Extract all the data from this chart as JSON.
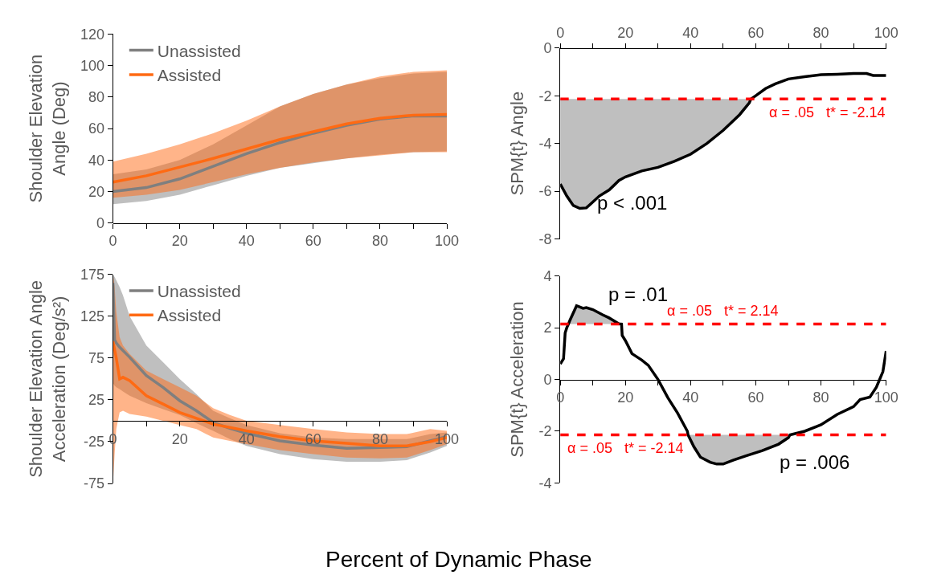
{
  "chart_data": [
    {
      "type": "line",
      "ylabel": "Shoulder Elevation\nAngle (Deg)",
      "xlim": [
        0,
        100
      ],
      "xticks": [
        0,
        {
          "value": 10,
          "label": null
        },
        20,
        {
          "value": 30,
          "label": null
        },
        40,
        {
          "value": 50,
          "label": null
        },
        60,
        {
          "value": 70,
          "label": null
        },
        80,
        {
          "value": 90,
          "label": null
        },
        100
      ],
      "ylim": [
        0,
        120
      ],
      "yticks": [
        0,
        20,
        40,
        60,
        80,
        100,
        120
      ],
      "legend": "top left",
      "series": [
        {
          "name": "Unassisted",
          "color": "#7f7f7f",
          "x": [
            0,
            10,
            20,
            30,
            40,
            50,
            60,
            70,
            80,
            90,
            100
          ],
          "values": [
            20,
            22.5,
            28,
            36,
            44,
            51,
            57,
            62,
            66,
            68,
            68
          ],
          "lower": [
            12,
            14,
            18,
            24,
            30,
            35,
            38,
            41,
            43.5,
            45,
            45.5
          ],
          "upper": [
            31,
            34,
            40,
            50,
            62,
            74,
            82,
            88,
            92,
            95,
            96
          ]
        },
        {
          "name": "Assisted",
          "color": "#ff6a13",
          "x": [
            0,
            10,
            20,
            30,
            40,
            50,
            60,
            70,
            80,
            90,
            100
          ],
          "values": [
            26,
            30,
            35.5,
            41,
            47,
            53,
            58,
            63,
            66.5,
            68.5,
            69
          ],
          "lower": [
            16,
            18,
            21,
            26,
            31,
            35,
            38.5,
            41,
            43,
            45,
            45
          ],
          "upper": [
            39,
            44,
            50,
            57,
            65,
            74,
            82,
            88,
            93,
            96,
            97
          ]
        }
      ]
    },
    {
      "type": "line",
      "ylabel": "SPM{t} Angle",
      "xlim": [
        0,
        100
      ],
      "xticks": [
        0,
        {
          "value": 10,
          "label": null
        },
        20,
        {
          "value": 30,
          "label": null
        },
        40,
        {
          "value": 50,
          "label": null
        },
        60,
        {
          "value": 70,
          "label": null
        },
        80,
        {
          "value": 90,
          "label": null
        },
        100
      ],
      "ylim": [
        -8,
        0
      ],
      "yticks": [
        -8,
        -6,
        -4,
        -2,
        0
      ],
      "series": [
        {
          "color": "#000000",
          "x": [
            0,
            2,
            4,
            6,
            8,
            10,
            12,
            15,
            18,
            20,
            25,
            30,
            35,
            40,
            45,
            50,
            55,
            58,
            58.5,
            60,
            63,
            66,
            70,
            75,
            80,
            85,
            90,
            94,
            96,
            100
          ],
          "values": [
            -5.7,
            -6.2,
            -6.6,
            -6.72,
            -6.7,
            -6.45,
            -6.2,
            -5.95,
            -5.55,
            -5.4,
            -5.15,
            -5.0,
            -4.75,
            -4.45,
            -4.0,
            -3.45,
            -2.8,
            -2.3,
            -2.14,
            -2.0,
            -1.7,
            -1.5,
            -1.3,
            -1.2,
            -1.12,
            -1.1,
            -1.07,
            -1.07,
            -1.15,
            -1.15
          ],
          "lower": [
            -5.7,
            -6.2,
            -6.6,
            -6.72,
            -6.7,
            -6.45,
            -6.2,
            -5.95,
            -5.55,
            -5.4,
            -5.15,
            -5.0,
            -4.75,
            -4.45,
            -4.0,
            -3.45,
            -2.8,
            -2.3,
            -2.14,
            null,
            null,
            null,
            null,
            null,
            null,
            null,
            null,
            null,
            null,
            null
          ],
          "upper": [
            -2.14,
            -2.14,
            -2.14,
            -2.14,
            -2.14,
            -2.14,
            -2.14,
            -2.14,
            -2.14,
            -2.14,
            -2.14,
            -2.14,
            -2.14,
            -2.14,
            -2.14,
            -2.14,
            -2.14,
            -2.14,
            -2.14,
            null,
            null,
            null,
            null,
            null,
            null,
            null,
            null,
            null,
            null,
            null
          ]
        }
      ],
      "ref_lines": [
        {
          "axis": "y",
          "value": -2.14,
          "label": "α = .05   t* = -2.14",
          "color": "#ff0000",
          "line_style": "dashed"
        }
      ],
      "annotations": [
        "p < .001"
      ]
    },
    {
      "type": "line",
      "ylabel": "Shoulder Elevation Angle\nAcceleration (Deg/s²)",
      "xlim": [
        0,
        100
      ],
      "xticks": [
        0,
        {
          "value": 10,
          "label": null
        },
        20,
        {
          "value": 30,
          "label": null
        },
        40,
        {
          "value": 50,
          "label": null
        },
        60,
        {
          "value": 70,
          "label": null
        },
        80,
        {
          "value": 90,
          "label": null
        },
        100
      ],
      "ylim": [
        -75,
        175
      ],
      "yticks": [
        -75,
        -25,
        25,
        75,
        125,
        175
      ],
      "legend": "top left",
      "series": [
        {
          "name": "Unassisted",
          "color": "#7f7f7f",
          "x": [
            0,
            0.5,
            1,
            2,
            3,
            5,
            10,
            15,
            20,
            25,
            30,
            35,
            40,
            50,
            60,
            70,
            80,
            88,
            95,
            100
          ],
          "values": [
            165,
            97,
            93,
            88,
            84,
            76,
            54,
            40,
            24,
            12,
            -2,
            -9,
            -15,
            -24,
            -29,
            -33,
            -32,
            -31,
            -24,
            -19
          ],
          "lower": [
            45,
            42,
            40,
            38,
            35,
            30,
            21,
            14,
            7,
            -3,
            -12,
            -22,
            -30,
            -40,
            -46,
            -49,
            -49,
            -47,
            -38,
            -30
          ],
          "upper": [
            175,
            172,
            168,
            160,
            150,
            125,
            90,
            70,
            50,
            32,
            12,
            3,
            -5,
            -15,
            -20,
            -22,
            -22,
            -22,
            -16,
            -14
          ]
        },
        {
          "name": "Assisted",
          "color": "#ff6a13",
          "x": [
            0,
            0.5,
            1,
            2,
            3,
            5,
            10,
            15,
            20,
            25,
            30,
            35,
            40,
            50,
            60,
            70,
            80,
            88,
            95,
            100
          ],
          "values": [
            95,
            85,
            75,
            50,
            52,
            48,
            30,
            20,
            10,
            3,
            -4,
            -8,
            -12,
            -19,
            -24,
            -27,
            -30,
            -30,
            -25,
            -20
          ],
          "lower": [
            -75,
            -40,
            -10,
            10,
            12,
            8,
            5,
            0,
            -5,
            -10,
            -20,
            -24,
            -28,
            -35,
            -40,
            -44,
            -45,
            -44,
            -35,
            -28
          ],
          "upper": [
            175,
            160,
            130,
            100,
            90,
            80,
            60,
            50,
            40,
            30,
            15,
            7,
            0,
            -5,
            -10,
            -14,
            -16,
            -16,
            -10,
            -12
          ]
        }
      ]
    },
    {
      "type": "line",
      "ylabel": "SPM{t} Acceleration",
      "xlim": [
        0,
        100
      ],
      "xticks": [
        0,
        {
          "value": 10,
          "label": null
        },
        20,
        {
          "value": 30,
          "label": null
        },
        40,
        {
          "value": 50,
          "label": null
        },
        60,
        {
          "value": 70,
          "label": null
        },
        80,
        {
          "value": 90,
          "label": null
        },
        100
      ],
      "ylim": [
        -4,
        4
      ],
      "yticks": [
        -4,
        -2,
        0,
        2,
        4
      ],
      "series": [
        {
          "color": "#000000",
          "x": [
            0,
            1,
            1.5,
            2,
            2.5,
            3,
            5,
            7,
            8,
            10,
            13,
            15,
            18,
            18.8,
            19,
            20,
            22,
            25,
            27,
            30,
            33,
            36,
            39,
            39.2,
            41,
            43,
            46,
            48,
            50,
            53,
            57,
            62,
            67,
            70,
            70.5,
            75,
            80,
            85,
            90,
            92,
            95,
            97,
            98,
            99,
            100
          ],
          "values": [
            0.6,
            0.8,
            1.8,
            2.0,
            2.14,
            2.3,
            2.85,
            2.75,
            2.78,
            2.7,
            2.5,
            2.38,
            2.15,
            2.14,
            1.7,
            1.5,
            1.0,
            0.75,
            0.55,
            0,
            -0.7,
            -1.3,
            -2.0,
            -2.14,
            -2.6,
            -3.0,
            -3.2,
            -3.27,
            -3.27,
            -3.12,
            -2.95,
            -2.75,
            -2.5,
            -2.25,
            -2.14,
            -2.0,
            -1.75,
            -1.35,
            -1.05,
            -0.78,
            -0.68,
            -0.3,
            0,
            0.3,
            1.1
          ],
          "lower": [
            null,
            null,
            null,
            null,
            2.14,
            2.14,
            2.14,
            2.14,
            2.14,
            2.14,
            2.14,
            2.14,
            2.14,
            2.14,
            null,
            null,
            null,
            null,
            null,
            null,
            null,
            null,
            null,
            -2.14,
            -2.6,
            -3.0,
            -3.2,
            -3.27,
            -3.27,
            -3.12,
            -2.95,
            -2.75,
            -2.5,
            -2.25,
            -2.14,
            null,
            null,
            null,
            null,
            null,
            null,
            null,
            null,
            null,
            null
          ],
          "upper": [
            null,
            null,
            null,
            null,
            2.14,
            2.3,
            2.85,
            2.75,
            2.78,
            2.7,
            2.5,
            2.38,
            2.15,
            2.14,
            null,
            null,
            null,
            null,
            null,
            null,
            null,
            null,
            null,
            -2.14,
            -2.14,
            -2.14,
            -2.14,
            -2.14,
            -2.14,
            -2.14,
            -2.14,
            -2.14,
            -2.14,
            -2.14,
            -2.14,
            null,
            null,
            null,
            null,
            null,
            null,
            null,
            null,
            null,
            null
          ]
        }
      ],
      "ref_lines": [
        {
          "axis": "y",
          "value": 2.14,
          "label": "α = .05   t* = 2.14",
          "color": "#ff0000",
          "line_style": "dashed"
        },
        {
          "axis": "y",
          "value": -2.14,
          "label": "α = .05   t* = -2.14",
          "color": "#ff0000",
          "line_style": "dashed"
        }
      ],
      "annotations": [
        "p = .01",
        "p = .006",
        "Percent of Dynamic Phase"
      ]
    }
  ]
}
